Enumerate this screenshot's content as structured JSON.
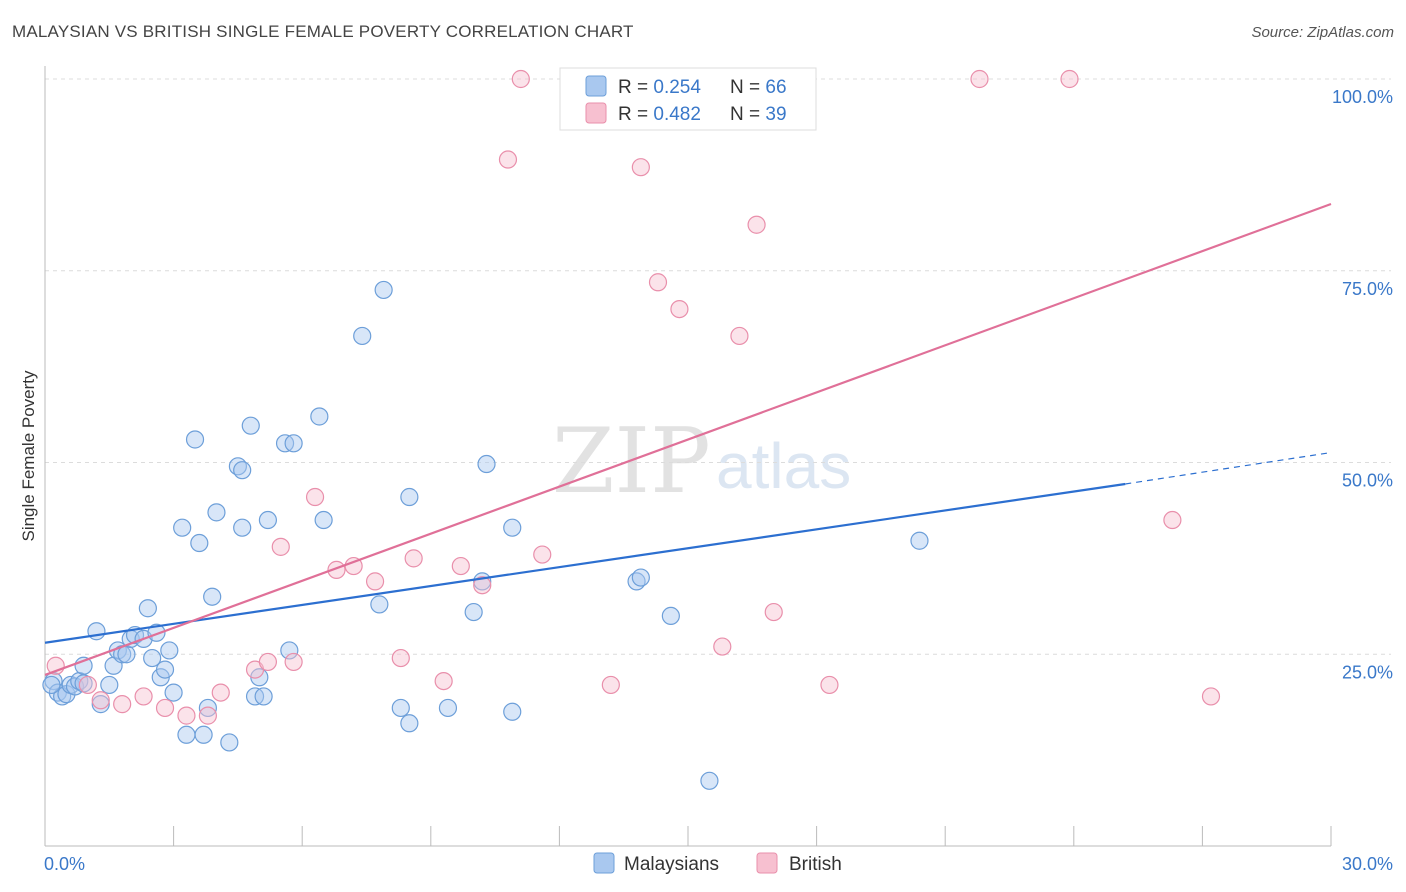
{
  "title": "MALAYSIAN VS BRITISH SINGLE FEMALE POVERTY CORRELATION CHART",
  "source": "Source: ZipAtlas.com",
  "watermark": {
    "zip": "ZIP",
    "atlas": "atlas"
  },
  "colors": {
    "malaysian_fill": "#a9c8ef",
    "malaysian_stroke": "#6d9fd9",
    "malaysian_line": "#2c6fd0",
    "british_fill": "#f7c0d0",
    "british_stroke": "#e98fab",
    "british_line": "#e07098",
    "grid": "#dcdcdc",
    "axis_text": "#3a78c9"
  },
  "legend": {
    "rows": [
      {
        "r_label": "R = ",
        "r_value": "0.254",
        "n_label": "N = ",
        "n_value": "66"
      },
      {
        "r_label": "R = ",
        "r_value": "0.482",
        "n_label": "N = ",
        "n_value": "39"
      }
    ]
  },
  "bottom_legend": [
    "Malaysians",
    "British"
  ],
  "chart_data": {
    "type": "scatter",
    "title": "MALAYSIAN VS BRITISH SINGLE FEMALE POVERTY CORRELATION CHART",
    "xlabel": "",
    "ylabel": "Single Female Poverty",
    "xlim": [
      0,
      30
    ],
    "ylim": [
      0,
      105
    ],
    "x_tick_labels": [
      "0.0%",
      "30.0%"
    ],
    "y_ticks": [
      25,
      50,
      75,
      100
    ],
    "y_tick_labels": [
      "25.0%",
      "50.0%",
      "75.0%",
      "100.0%"
    ],
    "grid": "horizontal dashed",
    "legend_position": "top-center",
    "series": [
      {
        "name": "Malaysians",
        "r": 0.254,
        "n": 66,
        "trend": {
          "x0": 0,
          "y0": 26.5,
          "x1": 25.2,
          "y1": 47.2,
          "dashed_to_x": 30,
          "dashed_to_y": 51.3
        },
        "points": [
          [
            0.2,
            21.5
          ],
          [
            0.3,
            20.0
          ],
          [
            0.4,
            19.5
          ],
          [
            0.5,
            19.8
          ],
          [
            0.6,
            21.0
          ],
          [
            0.7,
            20.8
          ],
          [
            0.8,
            21.5
          ],
          [
            0.9,
            21.2
          ],
          [
            0.9,
            23.5
          ],
          [
            1.2,
            28.0
          ],
          [
            1.3,
            18.5
          ],
          [
            1.5,
            21.0
          ],
          [
            1.6,
            23.5
          ],
          [
            1.7,
            25.5
          ],
          [
            1.8,
            25.0
          ],
          [
            1.9,
            25.0
          ],
          [
            2.0,
            27.0
          ],
          [
            2.1,
            27.5
          ],
          [
            2.3,
            27.0
          ],
          [
            2.4,
            31.0
          ],
          [
            2.5,
            24.5
          ],
          [
            2.6,
            27.8
          ],
          [
            2.7,
            22.0
          ],
          [
            2.8,
            23.0
          ],
          [
            2.9,
            25.5
          ],
          [
            3.0,
            20.0
          ],
          [
            3.2,
            41.5
          ],
          [
            3.3,
            14.5
          ],
          [
            3.5,
            53.0
          ],
          [
            3.6,
            39.5
          ],
          [
            3.7,
            14.5
          ],
          [
            3.8,
            18.0
          ],
          [
            3.9,
            32.5
          ],
          [
            4.0,
            43.5
          ],
          [
            4.3,
            13.5
          ],
          [
            4.5,
            49.5
          ],
          [
            4.6,
            41.5
          ],
          [
            4.6,
            49.0
          ],
          [
            4.8,
            54.8
          ],
          [
            4.9,
            19.5
          ],
          [
            5.0,
            22.0
          ],
          [
            5.1,
            19.5
          ],
          [
            5.2,
            42.5
          ],
          [
            5.6,
            52.5
          ],
          [
            5.7,
            25.5
          ],
          [
            5.8,
            52.5
          ],
          [
            6.4,
            56.0
          ],
          [
            6.5,
            42.5
          ],
          [
            7.4,
            66.5
          ],
          [
            7.8,
            31.5
          ],
          [
            7.9,
            72.5
          ],
          [
            8.3,
            18.0
          ],
          [
            8.5,
            45.5
          ],
          [
            8.5,
            16.0
          ],
          [
            9.4,
            18.0
          ],
          [
            10.0,
            30.5
          ],
          [
            10.2,
            34.5
          ],
          [
            10.3,
            49.8
          ],
          [
            10.9,
            17.5
          ],
          [
            10.9,
            41.5
          ],
          [
            13.8,
            34.5
          ],
          [
            13.9,
            35.0
          ],
          [
            14.6,
            30.0
          ],
          [
            15.5,
            8.5
          ],
          [
            20.4,
            39.8
          ],
          [
            0.15,
            21.0
          ]
        ]
      },
      {
        "name": "British",
        "r": 0.482,
        "n": 39,
        "trend": {
          "x0": 0,
          "y0": 22.3,
          "x1": 30,
          "y1": 83.7
        },
        "points": [
          [
            0.25,
            23.5
          ],
          [
            1.0,
            21.0
          ],
          [
            1.3,
            19.0
          ],
          [
            1.8,
            18.5
          ],
          [
            2.3,
            19.5
          ],
          [
            2.8,
            18.0
          ],
          [
            3.3,
            17.0
          ],
          [
            3.8,
            17.0
          ],
          [
            4.1,
            20.0
          ],
          [
            4.9,
            23.0
          ],
          [
            5.2,
            24.0
          ],
          [
            5.5,
            39.0
          ],
          [
            5.8,
            24.0
          ],
          [
            6.3,
            45.5
          ],
          [
            6.8,
            36.0
          ],
          [
            7.2,
            36.5
          ],
          [
            7.7,
            34.5
          ],
          [
            8.3,
            24.5
          ],
          [
            8.6,
            37.5
          ],
          [
            9.3,
            21.5
          ],
          [
            9.7,
            36.5
          ],
          [
            10.2,
            34.0
          ],
          [
            10.8,
            89.5
          ],
          [
            11.1,
            100
          ],
          [
            11.6,
            38.0
          ],
          [
            12.4,
            100
          ],
          [
            13.2,
            21.0
          ],
          [
            13.9,
            88.5
          ],
          [
            14.3,
            73.5
          ],
          [
            14.8,
            70.0
          ],
          [
            15.8,
            26.0
          ],
          [
            16.2,
            66.5
          ],
          [
            16.6,
            81.0
          ],
          [
            17.0,
            30.5
          ],
          [
            18.3,
            21.0
          ],
          [
            21.8,
            100
          ],
          [
            23.9,
            100
          ],
          [
            26.3,
            42.5
          ],
          [
            27.2,
            19.5
          ]
        ]
      }
    ]
  }
}
